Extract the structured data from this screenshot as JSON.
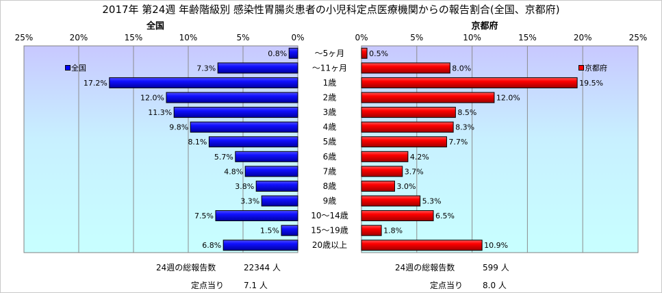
{
  "chart_data": {
    "type": "bar",
    "title": "2017年 第24週 年齢階級別 感染性胃腸炎患者の小児科定点医療機関からの報告割合(全国、京都府)",
    "categories": [
      "～5ヶ月",
      "～11ヶ月",
      "1歳",
      "2歳",
      "3歳",
      "4歳",
      "5歳",
      "6歳",
      "7歳",
      "8歳",
      "9歳",
      "10～14歳",
      "15～19歳",
      "20歳以上"
    ],
    "xlim": [
      0,
      25
    ],
    "tick_labels": [
      "0%",
      "5%",
      "10%",
      "15%",
      "20%",
      "25%"
    ],
    "orientation": "horizontal-back-to-back",
    "series": [
      {
        "name": "全国",
        "panel_title": "全国",
        "color": "#0000ff",
        "values": [
          0.8,
          7.3,
          17.2,
          12.0,
          11.3,
          9.8,
          8.1,
          5.7,
          4.8,
          3.8,
          3.3,
          7.5,
          1.5,
          6.8
        ],
        "labels": [
          "0.8%",
          "7.3%",
          "17.2%",
          "12.0%",
          "11.3%",
          "9.8%",
          "8.1%",
          "5.7%",
          "4.8%",
          "3.8%",
          "3.3%",
          "7.5%",
          "1.5%",
          "6.8%"
        ],
        "tick_labels": [
          "25%",
          "20%",
          "15%",
          "10%",
          "5%",
          "0%"
        ],
        "legend_label": "全国"
      },
      {
        "name": "京都府",
        "panel_title": "京都府",
        "color": "#ff0000",
        "values": [
          0.5,
          8.0,
          19.5,
          12.0,
          8.5,
          8.3,
          7.7,
          4.2,
          3.7,
          3.0,
          5.3,
          6.5,
          1.8,
          10.9
        ],
        "labels": [
          "0.5%",
          "8.0%",
          "19.5%",
          "12.0%",
          "8.5%",
          "8.3%",
          "7.7%",
          "4.2%",
          "3.7%",
          "3.0%",
          "5.3%",
          "6.5%",
          "1.8%",
          "10.9%"
        ],
        "tick_labels": [
          "0%",
          "5%",
          "10%",
          "15%",
          "20%",
          "25%"
        ],
        "legend_label": "京都府"
      }
    ],
    "grid": true,
    "plot_background": "gradient light-blue"
  },
  "footer": {
    "national": {
      "total_label": "24週の総報告数",
      "total_value": "22344 人",
      "per_site_label": "定点当り",
      "per_site_value": "7.1 人"
    },
    "kyoto": {
      "total_label": "24週の総報告数",
      "total_value": "599 人",
      "per_site_label": "定点当り",
      "per_site_value": "8.0 人"
    }
  }
}
